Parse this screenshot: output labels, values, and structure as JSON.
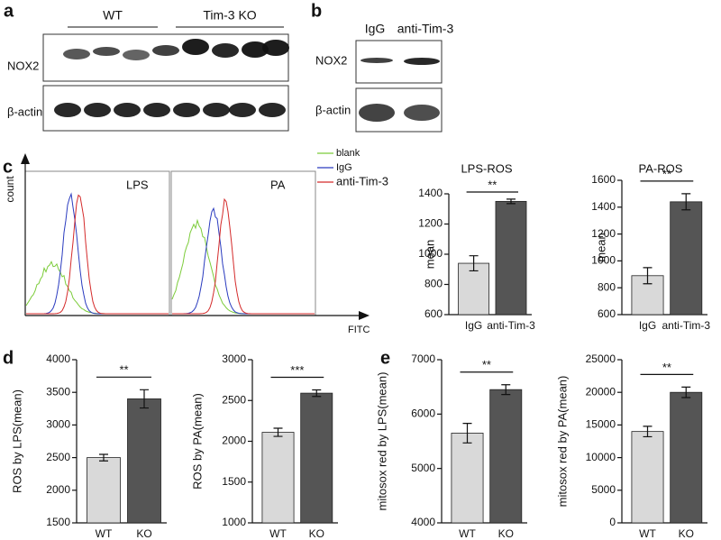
{
  "panel_labels": [
    "a",
    "b",
    "c",
    "d",
    "e"
  ],
  "blot_a": {
    "groups": [
      "WT",
      "Tim-3 KO"
    ],
    "rows": [
      "NOX2",
      "β-actin"
    ]
  },
  "blot_b": {
    "lanes": [
      "IgG",
      "anti-Tim-3"
    ],
    "rows": [
      "NOX2",
      "β-actin"
    ]
  },
  "flow": {
    "y_label": "count",
    "x_label": "FITC",
    "panels": [
      "LPS",
      "PA"
    ],
    "legend": [
      {
        "name": "blank",
        "color": "#7ccc3a"
      },
      {
        "name": "IgG",
        "color": "#2a3bbf"
      },
      {
        "name": "anti-Tim-3",
        "color": "#d42a2a"
      }
    ]
  },
  "chart_data": [
    {
      "type": "bar",
      "title": "LPS-ROS",
      "y_label": "mean",
      "categories": [
        "IgG",
        "anti-Tim-3"
      ],
      "values": [
        940,
        1350
      ],
      "errors": [
        50,
        15
      ],
      "colors": [
        "#d9d9d9",
        "#555555"
      ],
      "ylim": [
        600,
        1400
      ],
      "yticks": [
        600,
        800,
        1000,
        1200,
        1400
      ],
      "significance": "**"
    },
    {
      "type": "bar",
      "title": "PA-ROS",
      "y_label": "mean",
      "categories": [
        "IgG",
        "anti-Tim-3"
      ],
      "values": [
        890,
        1440
      ],
      "errors": [
        60,
        60
      ],
      "colors": [
        "#d9d9d9",
        "#555555"
      ],
      "ylim": [
        600,
        1600
      ],
      "yticks": [
        600,
        800,
        1000,
        1200,
        1400,
        1600
      ],
      "significance": "**"
    },
    {
      "type": "bar",
      "y_label": "ROS by LPS(mean)",
      "categories": [
        "WT",
        "KO"
      ],
      "values": [
        2500,
        3400
      ],
      "errors": [
        50,
        140
      ],
      "colors": [
        "#d9d9d9",
        "#555555"
      ],
      "ylim": [
        1500,
        4000
      ],
      "yticks": [
        1500,
        2000,
        2500,
        3000,
        3500,
        4000
      ],
      "significance": "**"
    },
    {
      "type": "bar",
      "y_label": "ROS by PA(mean)",
      "categories": [
        "WT",
        "KO"
      ],
      "values": [
        2110,
        2590
      ],
      "errors": [
        50,
        40
      ],
      "colors": [
        "#d9d9d9",
        "#555555"
      ],
      "ylim": [
        1000,
        3000
      ],
      "yticks": [
        1000,
        1500,
        2000,
        2500,
        3000
      ],
      "significance": "***"
    },
    {
      "type": "bar",
      "y_label": "mitosox red by LPS(mean)",
      "categories": [
        "WT",
        "KO"
      ],
      "values": [
        5650,
        6450
      ],
      "errors": [
        180,
        90
      ],
      "colors": [
        "#d9d9d9",
        "#555555"
      ],
      "ylim": [
        4000,
        7000
      ],
      "yticks": [
        4000,
        5000,
        6000,
        7000
      ],
      "significance": "**"
    },
    {
      "type": "bar",
      "y_label": "mitosox red by PA(mean)",
      "categories": [
        "WT",
        "KO"
      ],
      "values": [
        14000,
        20000
      ],
      "errors": [
        800,
        800
      ],
      "colors": [
        "#d9d9d9",
        "#555555"
      ],
      "ylim": [
        0,
        25000
      ],
      "yticks": [
        0,
        5000,
        10000,
        15000,
        20000,
        25000
      ],
      "significance": "**"
    }
  ]
}
